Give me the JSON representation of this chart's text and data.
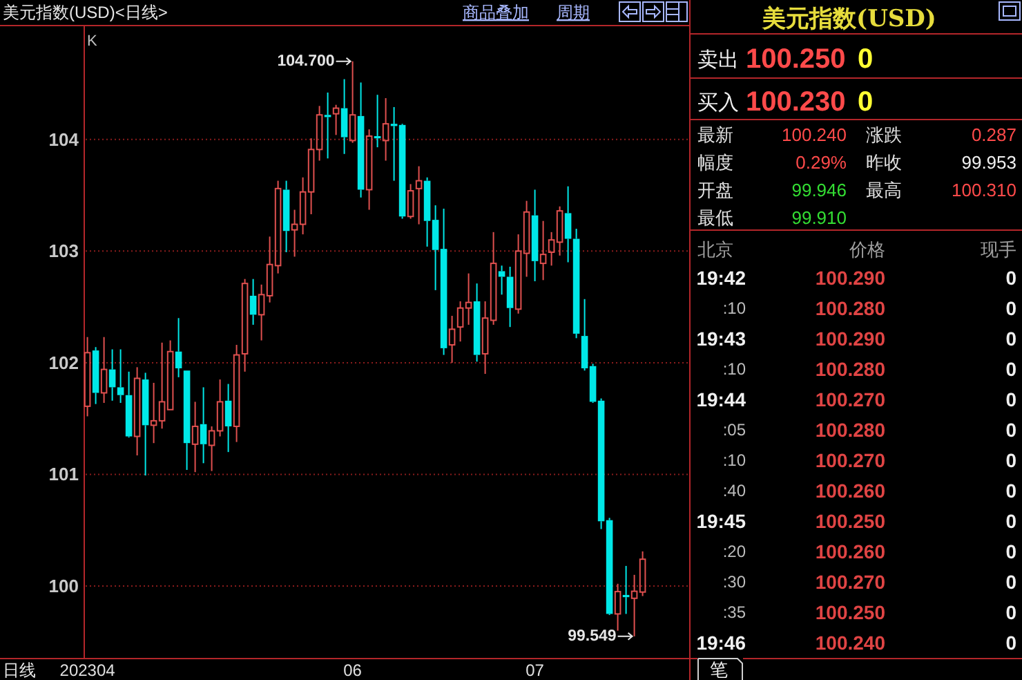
{
  "chart_data": [
    {
      "type": "candlestick",
      "title": "美元指数(USD)<日线>",
      "ylabel": "K",
      "xlabel": "日线",
      "categories": [
        "202304",
        null,
        null,
        null,
        null,
        null,
        null,
        null,
        null,
        null,
        null,
        null,
        null,
        null,
        null,
        null,
        null,
        null,
        null,
        null,
        null,
        null,
        null,
        null,
        null,
        null,
        null,
        null,
        null,
        null,
        null,
        null,
        "06",
        null,
        null,
        null,
        null,
        null,
        null,
        null,
        null,
        null,
        null,
        null,
        null,
        null,
        null,
        null,
        null,
        null,
        null,
        null,
        null,
        null,
        "07",
        null,
        null,
        null,
        null,
        null,
        null,
        null,
        null,
        null,
        null,
        null,
        null,
        null
      ],
      "ohlc": [
        [
          101.61,
          102.23,
          101.52,
          102.09
        ],
        [
          102.11,
          102.14,
          101.63,
          101.73
        ],
        [
          101.73,
          102.23,
          101.64,
          101.94
        ],
        [
          101.94,
          102.12,
          101.66,
          101.78
        ],
        [
          101.78,
          102.12,
          101.64,
          101.71
        ],
        [
          101.71,
          101.92,
          101.33,
          101.34
        ],
        [
          101.34,
          101.96,
          101.17,
          101.86
        ],
        [
          101.85,
          101.91,
          100.99,
          101.44
        ],
        [
          101.44,
          101.82,
          101.28,
          101.48
        ],
        [
          101.48,
          102.18,
          101.41,
          101.65
        ],
        [
          101.58,
          102.2,
          101.58,
          102.1
        ],
        [
          102.1,
          102.4,
          101.87,
          101.95
        ],
        [
          101.93,
          101.93,
          101.04,
          101.28
        ],
        [
          101.27,
          101.65,
          101.02,
          101.43
        ],
        [
          101.45,
          101.78,
          101.1,
          101.27
        ],
        [
          101.26,
          101.43,
          101.03,
          101.39
        ],
        [
          101.39,
          101.85,
          101.34,
          101.65
        ],
        [
          101.66,
          101.81,
          101.2,
          101.43
        ],
        [
          101.43,
          102.16,
          101.29,
          102.07
        ],
        [
          102.08,
          102.75,
          101.92,
          102.71
        ],
        [
          102.6,
          102.75,
          102.34,
          102.43
        ],
        [
          102.43,
          102.7,
          102.2,
          102.61
        ],
        [
          102.6,
          103.13,
          102.54,
          102.88
        ],
        [
          102.87,
          103.63,
          102.8,
          103.56
        ],
        [
          103.55,
          103.63,
          102.99,
          103.18
        ],
        [
          103.19,
          103.37,
          102.95,
          103.24
        ],
        [
          103.24,
          103.66,
          103.15,
          103.53
        ],
        [
          103.53,
          104.01,
          103.33,
          103.91
        ],
        [
          103.91,
          104.3,
          103.81,
          104.22
        ],
        [
          104.22,
          104.42,
          103.83,
          104.2
        ],
        [
          104.23,
          104.31,
          104.04,
          104.28
        ],
        [
          104.28,
          104.54,
          103.87,
          104.02
        ],
        [
          103.99,
          104.7,
          103.97,
          104.22
        ],
        [
          104.21,
          104.51,
          103.48,
          103.55
        ],
        [
          103.55,
          104.09,
          103.37,
          104.03
        ],
        [
          104.03,
          104.4,
          103.93,
          104.01
        ],
        [
          103.99,
          104.37,
          103.81,
          104.14
        ],
        [
          104.14,
          104.29,
          103.63,
          104.12
        ],
        [
          104.13,
          104.14,
          103.29,
          103.31
        ],
        [
          103.31,
          103.6,
          103.29,
          103.54
        ],
        [
          103.56,
          103.76,
          103.24,
          103.63
        ],
        [
          103.63,
          103.66,
          103.04,
          103.27
        ],
        [
          103.28,
          103.41,
          102.65,
          103.01
        ],
        [
          103.02,
          103.38,
          102.07,
          102.13
        ],
        [
          102.16,
          102.42,
          102.0,
          102.3
        ],
        [
          102.32,
          102.55,
          102.19,
          102.49
        ],
        [
          102.49,
          102.8,
          102.34,
          102.54
        ],
        [
          102.55,
          102.71,
          102.01,
          102.07
        ],
        [
          102.08,
          102.55,
          101.9,
          102.4
        ],
        [
          102.38,
          103.17,
          102.34,
          102.89
        ],
        [
          102.82,
          102.87,
          102.61,
          102.77
        ],
        [
          102.77,
          102.86,
          102.32,
          102.49
        ],
        [
          102.48,
          103.15,
          102.44,
          103.0
        ],
        [
          102.98,
          103.45,
          102.77,
          103.35
        ],
        [
          103.32,
          103.55,
          102.73,
          102.91
        ],
        [
          102.89,
          103.27,
          102.74,
          102.97
        ],
        [
          102.99,
          103.17,
          102.87,
          103.1
        ],
        [
          103.08,
          103.4,
          102.96,
          103.36
        ],
        [
          103.34,
          103.58,
          102.9,
          103.11
        ],
        [
          103.11,
          103.2,
          102.22,
          102.26
        ],
        [
          102.24,
          102.57,
          101.93,
          101.95
        ],
        [
          101.97,
          101.99,
          101.64,
          101.65
        ],
        [
          101.66,
          101.68,
          100.51,
          100.58
        ],
        [
          100.59,
          100.61,
          99.74,
          99.75
        ],
        [
          99.75,
          100.02,
          99.6,
          99.95
        ],
        [
          99.92,
          100.18,
          99.75,
          99.9
        ],
        [
          99.89,
          100.1,
          99.549,
          99.953
        ],
        [
          99.946,
          100.31,
          99.91,
          100.24
        ]
      ],
      "colors": [
        "#e0504f",
        "#00e8e8",
        "#e0504f",
        "#00e8e8",
        "#00e8e8",
        "#00e8e8",
        "#e0504f",
        "#00e8e8",
        "#e0504f",
        "#e0504f",
        "#e0504f",
        "#00e8e8",
        "#00e8e8",
        "#e0504f",
        "#00e8e8",
        "#e0504f",
        "#e0504f",
        "#00e8e8",
        "#e0504f",
        "#e0504f",
        "#00e8e8",
        "#e0504f",
        "#e0504f",
        "#e0504f",
        "#00e8e8",
        "#e0504f",
        "#e0504f",
        "#e0504f",
        "#e0504f",
        "#00e8e8",
        "#e0504f",
        "#00e8e8",
        "#e0504f",
        "#00e8e8",
        "#e0504f",
        "#00e8e8",
        "#e0504f",
        "#00e8e8",
        "#00e8e8",
        "#e0504f",
        "#e0504f",
        "#00e8e8",
        "#00e8e8",
        "#00e8e8",
        "#e0504f",
        "#e0504f",
        "#e0504f",
        "#00e8e8",
        "#e0504f",
        "#e0504f",
        "#00e8e8",
        "#00e8e8",
        "#e0504f",
        "#e0504f",
        "#00e8e8",
        "#e0504f",
        "#e0504f",
        "#e0504f",
        "#00e8e8",
        "#00e8e8",
        "#00e8e8",
        "#00e8e8",
        "#00e8e8",
        "#00e8e8",
        "#e0504f",
        "#00e8e8",
        "#e0504f",
        "#e0504f"
      ],
      "ylim": [
        99.35,
        105.02
      ],
      "yticks": [
        100,
        101,
        102,
        103,
        104
      ],
      "grid": "y",
      "annotations": [
        "104.700",
        "99.549",
        "商品叠加",
        "周期"
      ]
    },
    {
      "type": "other",
      "title": "美元指数(USD)",
      "annotations": [
        "卖出",
        "100.250",
        "0",
        "买入",
        "100.230",
        "0",
        "最新",
        "100.240",
        "涨跌",
        "0.287",
        "幅度",
        "0.29%",
        "昨收",
        "99.953",
        "开盘",
        "99.946",
        "最高",
        "100.310",
        "最低",
        "99.910",
        "北京",
        "价格",
        "现手",
        "19:42",
        "100.290",
        "0",
        ":10",
        "100.280",
        "0",
        "19:43",
        "100.290",
        "0",
        ":10",
        "100.280",
        "0",
        "19:44",
        "100.270",
        "0",
        ":05",
        "100.280",
        "0",
        ":10",
        "100.270",
        "0",
        ":40",
        "100.260",
        "0",
        "19:45",
        "100.250",
        "0",
        ":20",
        "100.260",
        "0",
        ":30",
        "100.270",
        "0",
        ":35",
        "100.250",
        "0",
        "19:46",
        "100.240",
        "0",
        "笔"
      ]
    }
  ]
}
